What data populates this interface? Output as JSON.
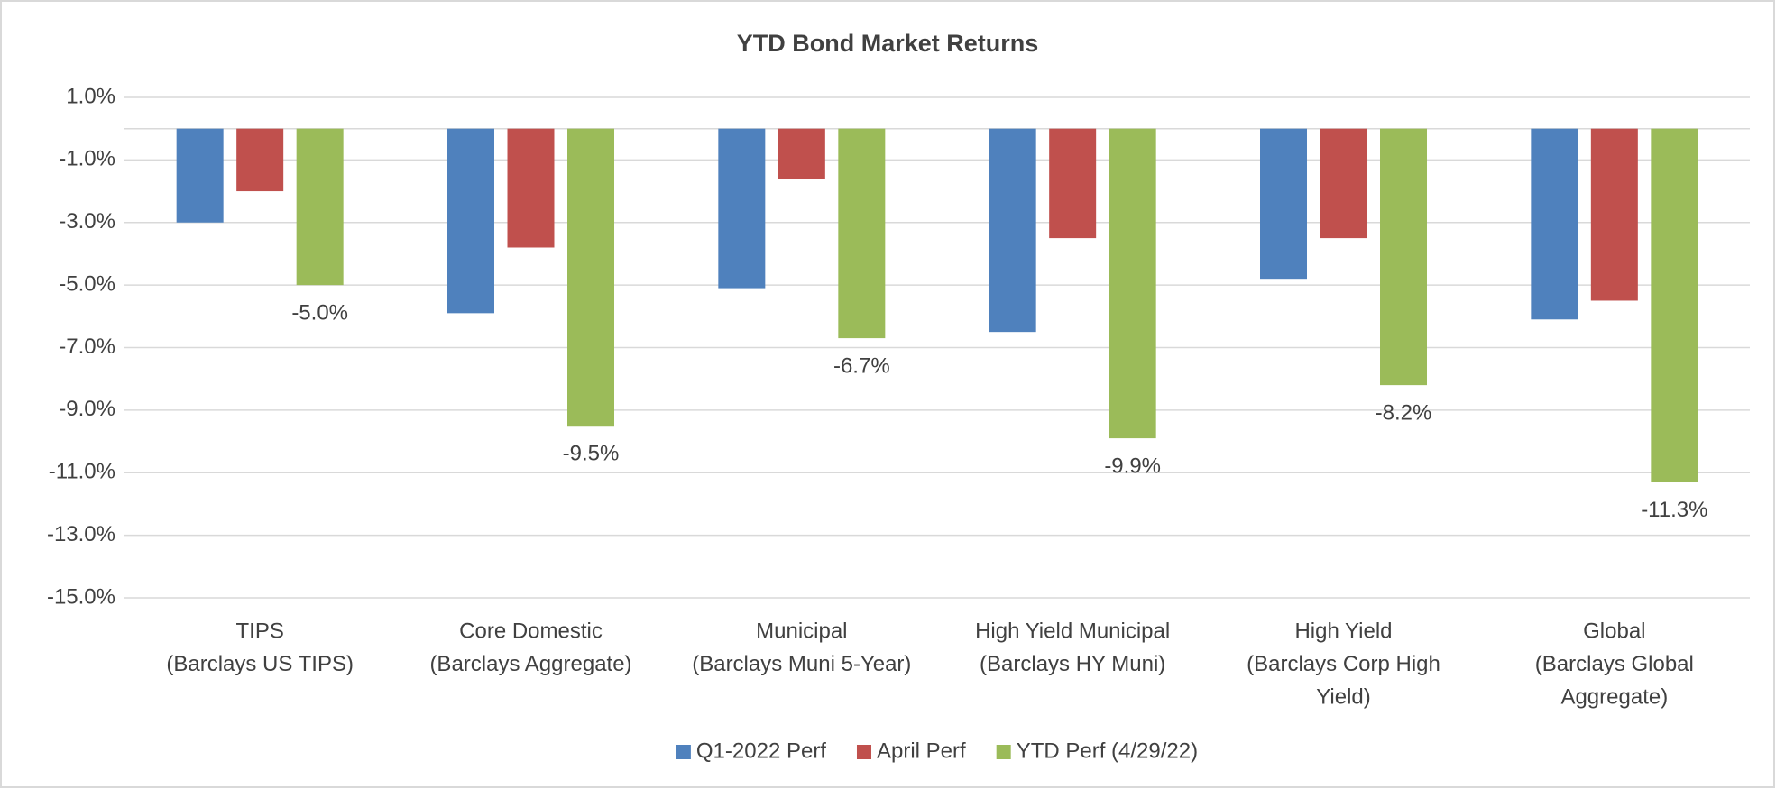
{
  "chart_data": {
    "type": "bar",
    "title": "YTD Bond Market Returns",
    "categories": [
      [
        "TIPS",
        "(Barclays US TIPS)"
      ],
      [
        "Core Domestic",
        "(Barclays Aggregate)"
      ],
      [
        "Municipal",
        "(Barclays Muni 5-Year)"
      ],
      [
        "High Yield Municipal",
        "(Barclays HY Muni)"
      ],
      [
        "High Yield",
        "(Barclays Corp High",
        "Yield)"
      ],
      [
        "Global",
        "(Barclays Global",
        "Aggregate)"
      ]
    ],
    "series": [
      {
        "name": "Q1-2022 Perf",
        "color": "#4f81bd",
        "values": [
          -3.0,
          -5.9,
          -5.1,
          -6.5,
          -4.8,
          -6.1
        ]
      },
      {
        "name": "April Perf",
        "color": "#c0504d",
        "values": [
          -2.0,
          -3.8,
          -1.6,
          -3.5,
          -3.5,
          -5.5
        ]
      },
      {
        "name": "YTD Perf (4/29/22)",
        "color": "#9bbb59",
        "values": [
          -5.0,
          -9.5,
          -6.7,
          -9.9,
          -8.2,
          -11.3
        ],
        "value_labels": [
          "-5.0%",
          "-9.5%",
          "-6.7%",
          "-9.9%",
          "-8.2%",
          "-11.3%"
        ]
      }
    ],
    "ylim": [
      -15,
      1
    ],
    "yticks": [
      {
        "value": 1,
        "label": "1.0%"
      },
      {
        "value": -1,
        "label": "-1.0%"
      },
      {
        "value": -3,
        "label": "-3.0%"
      },
      {
        "value": -5,
        "label": "-5.0%"
      },
      {
        "value": -7,
        "label": "-7.0%"
      },
      {
        "value": -9,
        "label": "-9.0%"
      },
      {
        "value": -11,
        "label": "-11.0%"
      },
      {
        "value": -13,
        "label": "-13.0%"
      },
      {
        "value": -15,
        "label": "-15.0%"
      }
    ],
    "grid": true,
    "legend": "bottom"
  }
}
